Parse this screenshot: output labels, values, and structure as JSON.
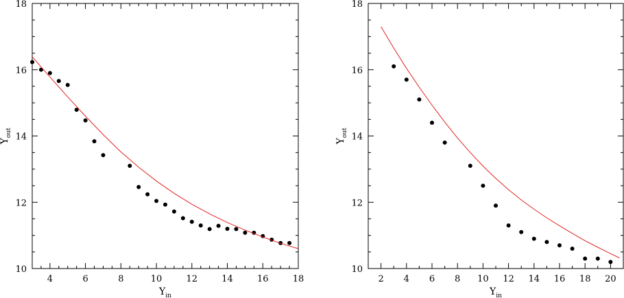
{
  "chart_data": [
    {
      "type": "scatter",
      "title": "",
      "xlabel": "Υ",
      "xlabel_sub": "in",
      "ylabel": "Υ",
      "ylabel_sub": "out",
      "xlim": [
        3,
        18
      ],
      "ylim": [
        10,
        18
      ],
      "xticks": [
        4,
        6,
        8,
        10,
        12,
        14,
        16,
        18
      ],
      "yticks": [
        10,
        12,
        14,
        16,
        18
      ],
      "x_minor_step": 0.5,
      "y_minor_step": 0.5,
      "series": [
        {
          "kind": "points",
          "x": [
            3.0,
            3.5,
            4.0,
            4.5,
            5.0,
            5.5,
            6.0,
            6.5,
            7.0,
            8.5,
            9.0,
            9.5,
            10.0,
            10.5,
            11.0,
            11.5,
            12.0,
            12.5,
            13.0,
            13.5,
            14.0,
            14.5,
            15.0,
            15.5,
            16.0,
            16.5,
            17.0,
            17.5
          ],
          "y": [
            16.23,
            16.0,
            15.9,
            15.66,
            15.54,
            14.79,
            14.47,
            13.84,
            13.42,
            13.1,
            12.46,
            12.24,
            12.04,
            11.93,
            11.72,
            11.52,
            11.41,
            11.3,
            11.19,
            11.29,
            11.2,
            11.19,
            11.08,
            11.08,
            10.98,
            10.87,
            10.77,
            10.77
          ]
        },
        {
          "kind": "curve",
          "color": "#e0221f",
          "x": [
            3,
            4,
            5,
            6,
            7,
            8,
            9,
            10,
            11,
            12,
            13,
            14,
            15,
            16,
            17,
            18
          ],
          "y": [
            16.39,
            15.78,
            15.18,
            14.6,
            14.04,
            13.52,
            13.06,
            12.64,
            12.27,
            11.94,
            11.65,
            11.39,
            11.16,
            10.95,
            10.76,
            10.6
          ]
        }
      ]
    },
    {
      "type": "scatter",
      "title": "",
      "xlabel": "Υ",
      "xlabel_sub": "in",
      "ylabel": "Υ",
      "ylabel_sub": "out",
      "xlim": [
        1,
        21
      ],
      "ylim": [
        10,
        18
      ],
      "xticks": [
        2,
        4,
        6,
        8,
        10,
        12,
        14,
        16,
        18,
        20
      ],
      "yticks": [
        10,
        12,
        14,
        16,
        18
      ],
      "x_minor_step": 1,
      "y_minor_step": 0.5,
      "series": [
        {
          "kind": "points",
          "x": [
            3,
            4,
            5,
            6,
            7,
            9,
            10,
            11,
            12,
            13,
            14,
            15,
            16,
            17,
            18,
            19,
            20
          ],
          "y": [
            16.1,
            15.7,
            15.1,
            14.4,
            13.8,
            13.1,
            12.5,
            11.9,
            11.3,
            11.1,
            10.9,
            10.8,
            10.7,
            10.6,
            10.3,
            10.3,
            10.2
          ]
        },
        {
          "kind": "curve",
          "color": "#e0221f",
          "x": [
            2,
            3,
            4,
            5,
            6,
            7,
            8,
            9,
            10,
            11,
            12,
            13,
            14,
            15,
            16,
            17,
            18,
            19,
            20,
            20.7
          ],
          "y": [
            17.3,
            16.65,
            16.04,
            15.47,
            14.93,
            14.42,
            13.94,
            13.5,
            13.09,
            12.72,
            12.38,
            12.07,
            11.79,
            11.53,
            11.29,
            11.06,
            10.84,
            10.64,
            10.45,
            10.32
          ]
        }
      ]
    }
  ]
}
